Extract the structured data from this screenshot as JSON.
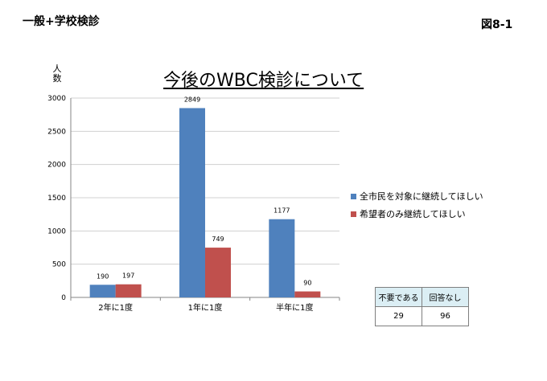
{
  "header": {
    "title": "一般+学校検診",
    "figure_number": "図8-1"
  },
  "colors": {
    "series1": "#4f81bd",
    "series2": "#c0504d",
    "grid": "#d0d0d0",
    "axis": "#868686"
  },
  "chart_data": {
    "type": "bar",
    "title": "今後のWBC検診について",
    "ylabel": "人数",
    "ylabel_chars": [
      "人",
      "数"
    ],
    "xlabel": "",
    "categories": [
      "2年に1度",
      "1年に1度",
      "半年に1度"
    ],
    "series": [
      {
        "name": "全市民を対象に継続してほしい",
        "values": [
          190,
          2849,
          1177
        ]
      },
      {
        "name": "希望者のみ継続してほしい",
        "values": [
          197,
          749,
          90
        ]
      }
    ],
    "ylim": [
      0,
      3000
    ],
    "yticks": [
      0,
      500,
      1000,
      1500,
      2000,
      2500,
      3000
    ],
    "grid": true,
    "legend": "right"
  },
  "response_table": {
    "headers": [
      "不要である",
      "回答なし"
    ],
    "values": [
      "29",
      "96"
    ]
  }
}
